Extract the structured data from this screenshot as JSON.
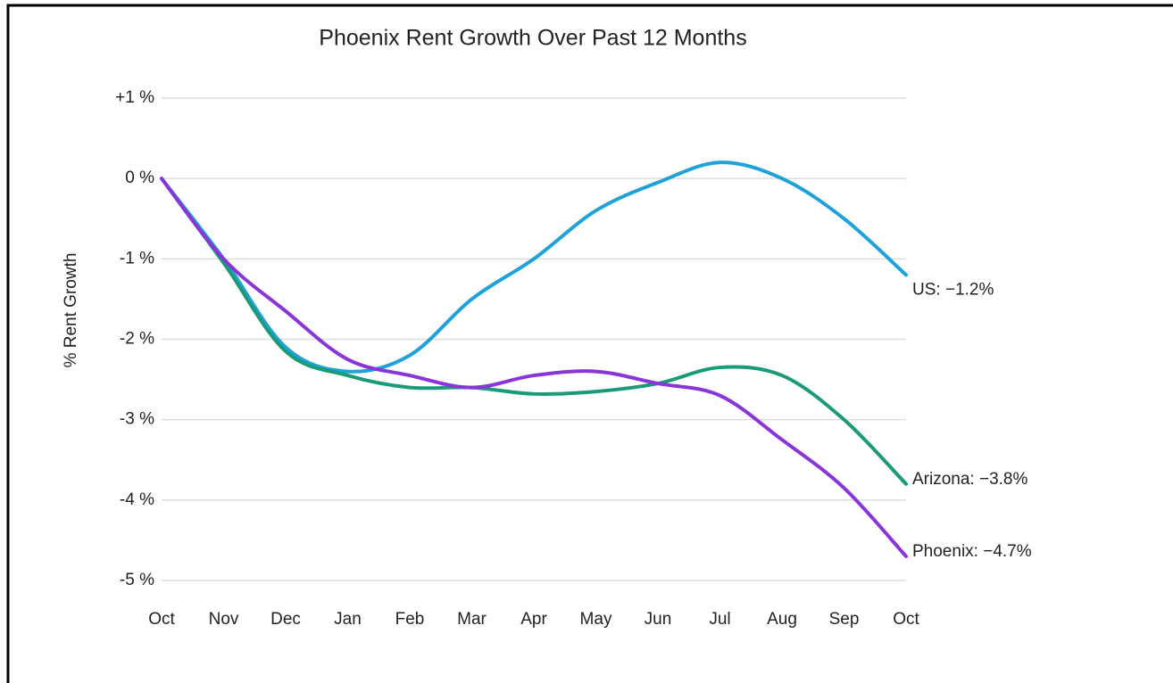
{
  "chart_data": {
    "type": "line",
    "title": "Phoenix Rent Growth Over Past 12 Months",
    "y_label": "% Rent Growth",
    "categories": [
      "Oct",
      "Nov",
      "Dec",
      "Jan",
      "Feb",
      "Mar",
      "Apr",
      "May",
      "Jun",
      "Jul",
      "Aug",
      "Sep",
      "Oct"
    ],
    "series": [
      {
        "name": "US",
        "color": "#1ea2d9",
        "end_label": "US: −1.2%",
        "values": [
          0,
          -1.0,
          -2.1,
          -2.4,
          -2.2,
          -1.5,
          -1.0,
          -0.4,
          -0.05,
          0.2,
          0.0,
          -0.5,
          -1.2
        ]
      },
      {
        "name": "Arizona",
        "color": "#1a9a78",
        "end_label": "Arizona: −3.8%",
        "values": [
          0,
          -1.05,
          -2.15,
          -2.45,
          -2.6,
          -2.6,
          -2.68,
          -2.65,
          -2.55,
          -2.35,
          -2.45,
          -3.0,
          -3.8
        ]
      },
      {
        "name": "Phoenix",
        "color": "#8a35d9",
        "end_label": "Phoenix: −4.7%",
        "values": [
          0,
          -1.0,
          -1.65,
          -2.25,
          -2.45,
          -2.6,
          -2.45,
          -2.4,
          -2.55,
          -2.7,
          -3.25,
          -3.85,
          -4.7
        ]
      }
    ],
    "ylim": [
      -5,
      1
    ],
    "yticks": [
      {
        "value": 1,
        "label": "+1 %"
      },
      {
        "value": 0,
        "label": "0 %"
      },
      {
        "value": -1,
        "label": "-1 %"
      },
      {
        "value": -2,
        "label": "-2 %"
      },
      {
        "value": -3,
        "label": "-3 %"
      },
      {
        "value": -4,
        "label": "-4 %"
      },
      {
        "value": -5,
        "label": "-5 %"
      }
    ],
    "grid": true
  }
}
